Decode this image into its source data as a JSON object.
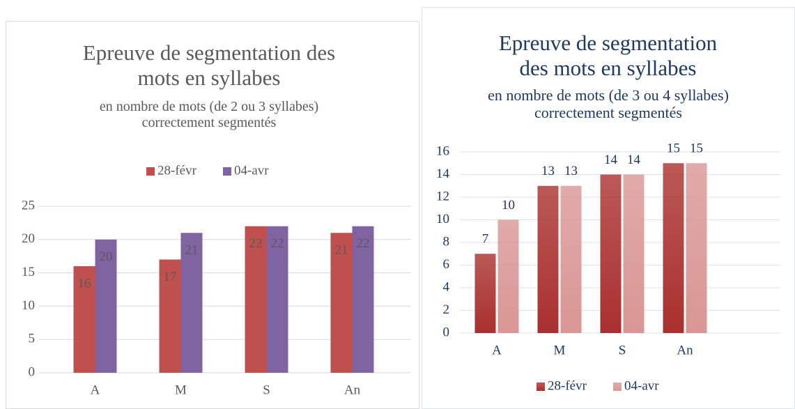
{
  "chart_data": [
    {
      "type": "bar",
      "title": "Epreuve de segmentation des mots en syllabes",
      "subtitle": "en nombre de mots (de 2 ou 3 syllabes) correctement segmentés",
      "categories": [
        "A",
        "M",
        "S",
        "An"
      ],
      "series": [
        {
          "name": "28-févr",
          "color": "#c0504d",
          "values": [
            16,
            17,
            22,
            21
          ]
        },
        {
          "name": "04-avr",
          "color": "#8064a2",
          "values": [
            20,
            21,
            22,
            22
          ]
        }
      ],
      "ylim": [
        0,
        25
      ],
      "yticks": [
        0,
        5,
        10,
        15,
        20,
        25
      ],
      "grid": true,
      "legend": "top",
      "label_position": "inside_end"
    },
    {
      "type": "bar",
      "title": "Epreuve de segmentation des mots en syllabes",
      "subtitle": "en nombre de mots (de 3 ou 4 syllabes) correctement segmentés",
      "categories": [
        "A",
        "M",
        "S",
        "An"
      ],
      "series": [
        {
          "name": "28-févr",
          "color": "#a9302e",
          "values": [
            7,
            13,
            14,
            15
          ]
        },
        {
          "name": "04-avr",
          "color": "#d99694",
          "values": [
            10,
            13,
            14,
            15
          ]
        }
      ],
      "ylim": [
        0,
        16
      ],
      "yticks": [
        0,
        2,
        4,
        6,
        8,
        10,
        12,
        14,
        16
      ],
      "grid": true,
      "legend": "bottom",
      "label_position": "outside_end"
    }
  ]
}
